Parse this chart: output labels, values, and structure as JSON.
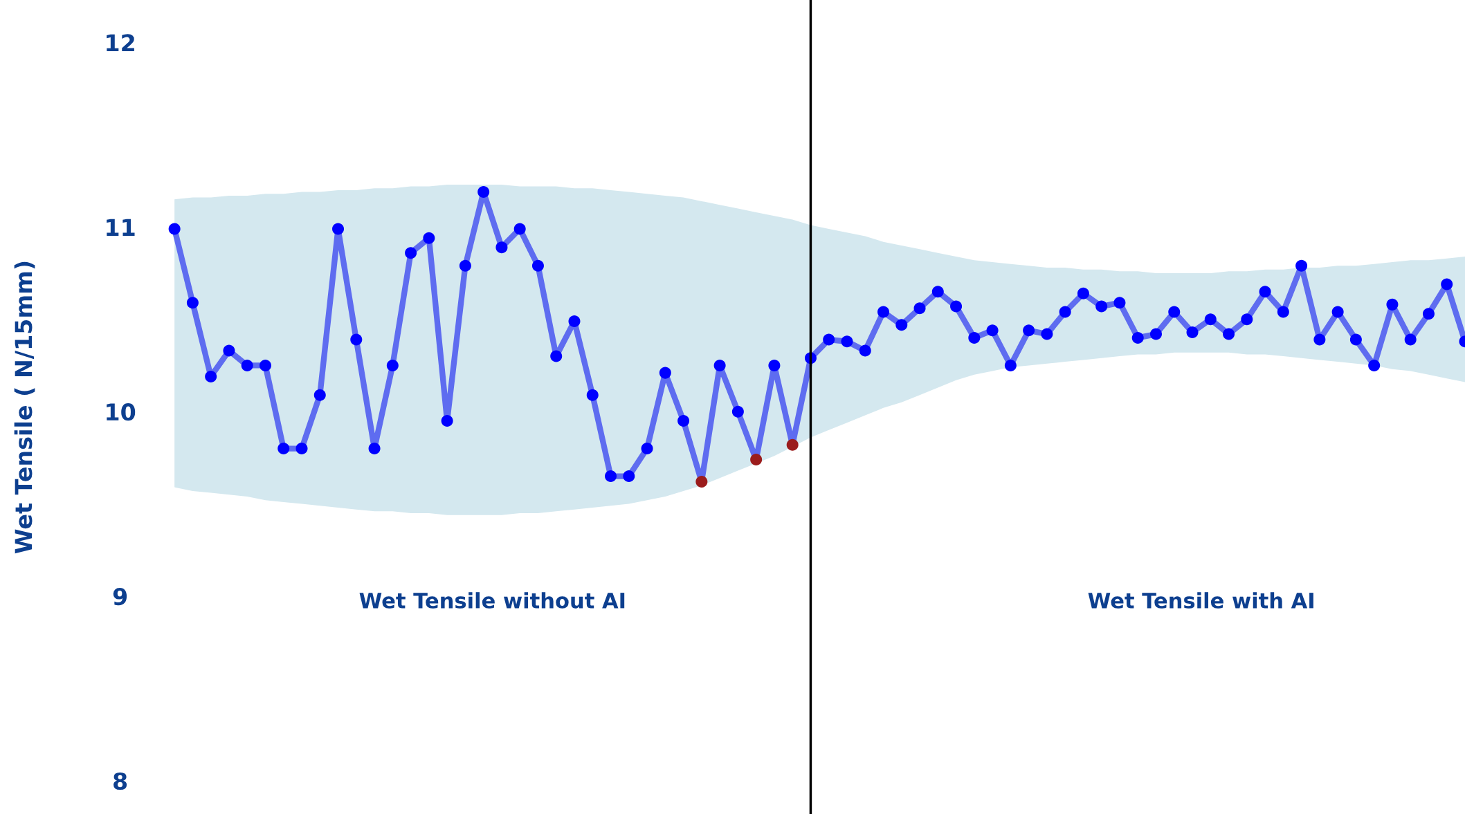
{
  "chart_data": {
    "type": "line",
    "ylabel": "Wet Tensile ( N/15mm)",
    "annotations": [
      "Wet Tensile without AI",
      "Wet Tensile with AI"
    ],
    "categories": [
      null,
      null,
      null,
      null,
      null,
      null,
      null,
      null,
      null,
      null,
      null,
      null,
      null,
      null,
      null,
      null,
      null,
      null,
      null,
      null,
      null,
      null,
      null,
      null,
      null,
      null,
      null,
      null,
      null,
      null,
      null,
      null,
      null,
      null,
      null,
      null,
      null,
      null,
      null,
      null,
      null,
      null,
      null,
      null,
      null,
      null,
      null,
      null,
      null,
      null,
      null,
      null,
      null,
      null,
      null,
      null,
      null,
      null,
      null,
      null,
      null,
      null,
      null,
      null,
      null,
      null,
      null,
      null,
      null,
      null,
      null,
      null
    ],
    "series": [
      {
        "color": "#5e6cf0",
        "marker": "circle",
        "line_style": "solid",
        "colors": [
          "#0000ff",
          "#0000ff",
          "#0000ff",
          "#0000ff",
          "#0000ff",
          "#0000ff",
          "#0000ff",
          "#0000ff",
          "#0000ff",
          "#0000ff",
          "#0000ff",
          "#0000ff",
          "#0000ff",
          "#0000ff",
          "#0000ff",
          "#0000ff",
          "#0000ff",
          "#0000ff",
          "#0000ff",
          "#0000ff",
          "#0000ff",
          "#0000ff",
          "#0000ff",
          "#0000ff",
          "#0000ff",
          "#0000ff",
          "#0000ff",
          "#0000ff",
          "#0000ff",
          "#9b1c1c",
          "#0000ff",
          "#0000ff",
          "#9b1c1c",
          "#0000ff",
          "#9b1c1c",
          "#0000ff",
          "#0000ff",
          "#0000ff",
          "#0000ff",
          "#0000ff",
          "#0000ff",
          "#0000ff",
          "#0000ff",
          "#0000ff",
          "#0000ff",
          "#0000ff",
          "#0000ff",
          "#0000ff",
          "#0000ff",
          "#0000ff",
          "#0000ff",
          "#0000ff",
          "#0000ff",
          "#0000ff",
          "#0000ff",
          "#0000ff",
          "#0000ff",
          "#0000ff",
          "#0000ff",
          "#0000ff",
          "#0000ff",
          "#0000ff",
          "#0000ff",
          "#0000ff",
          "#0000ff",
          "#0000ff",
          "#0000ff",
          "#0000ff",
          "#0000ff",
          "#0000ff",
          "#0000ff",
          "#0000ff"
        ],
        "values": [
          10.99,
          10.59,
          10.19,
          10.33,
          10.25,
          10.25,
          9.8,
          9.8,
          10.09,
          10.99,
          10.39,
          9.8,
          10.25,
          10.86,
          10.94,
          9.95,
          10.79,
          11.19,
          10.89,
          10.99,
          10.79,
          10.3,
          10.49,
          10.09,
          9.65,
          9.65,
          9.8,
          10.21,
          9.95,
          9.62,
          10.25,
          10.0,
          9.74,
          10.25,
          9.82,
          10.29,
          10.39,
          10.38,
          10.33,
          10.54,
          10.47,
          10.56,
          10.65,
          10.57,
          10.4,
          10.44,
          10.25,
          10.44,
          10.42,
          10.54,
          10.64,
          10.57,
          10.59,
          10.4,
          10.42,
          10.54,
          10.43,
          10.5,
          10.42,
          10.5,
          10.65,
          10.54,
          10.79,
          10.39,
          10.54,
          10.39,
          10.25,
          10.58,
          10.39,
          10.53,
          10.69,
          10.38
        ],
        "upper": [
          11.15,
          11.16,
          11.16,
          11.17,
          11.17,
          11.18,
          11.18,
          11.19,
          11.19,
          11.2,
          11.2,
          11.21,
          11.21,
          11.22,
          11.22,
          11.23,
          11.23,
          11.23,
          11.23,
          11.22,
          11.22,
          11.22,
          11.21,
          11.21,
          11.2,
          11.19,
          11.18,
          11.17,
          11.16,
          11.14,
          11.12,
          11.1,
          11.08,
          11.06,
          11.04,
          11.01,
          10.99,
          10.97,
          10.95,
          10.92,
          10.9,
          10.88,
          10.86,
          10.84,
          10.82,
          10.81,
          10.8,
          10.79,
          10.78,
          10.78,
          10.77,
          10.77,
          10.76,
          10.76,
          10.75,
          10.75,
          10.75,
          10.75,
          10.76,
          10.76,
          10.77,
          10.77,
          10.78,
          10.78,
          10.79,
          10.79,
          10.8,
          10.81,
          10.82,
          10.82,
          10.83,
          10.84
        ],
        "lower": [
          9.59,
          9.57,
          9.56,
          9.55,
          9.54,
          9.52,
          9.51,
          9.5,
          9.49,
          9.48,
          9.47,
          9.46,
          9.46,
          9.45,
          9.45,
          9.44,
          9.44,
          9.44,
          9.44,
          9.45,
          9.45,
          9.46,
          9.47,
          9.48,
          9.49,
          9.5,
          9.52,
          9.54,
          9.57,
          9.6,
          9.64,
          9.68,
          9.72,
          9.76,
          9.81,
          9.86,
          9.9,
          9.94,
          9.98,
          10.02,
          10.05,
          10.09,
          10.13,
          10.17,
          10.2,
          10.22,
          10.24,
          10.25,
          10.26,
          10.27,
          10.28,
          10.29,
          10.3,
          10.31,
          10.31,
          10.32,
          10.32,
          10.32,
          10.32,
          10.31,
          10.31,
          10.3,
          10.29,
          10.28,
          10.27,
          10.26,
          10.25,
          10.23,
          10.22,
          10.2,
          10.18,
          10.16
        ]
      }
    ],
    "ylim": [
      7.82,
      12.23
    ],
    "yticks": [
      8,
      9,
      10,
      11,
      12
    ],
    "tick_labels": "y"
  }
}
